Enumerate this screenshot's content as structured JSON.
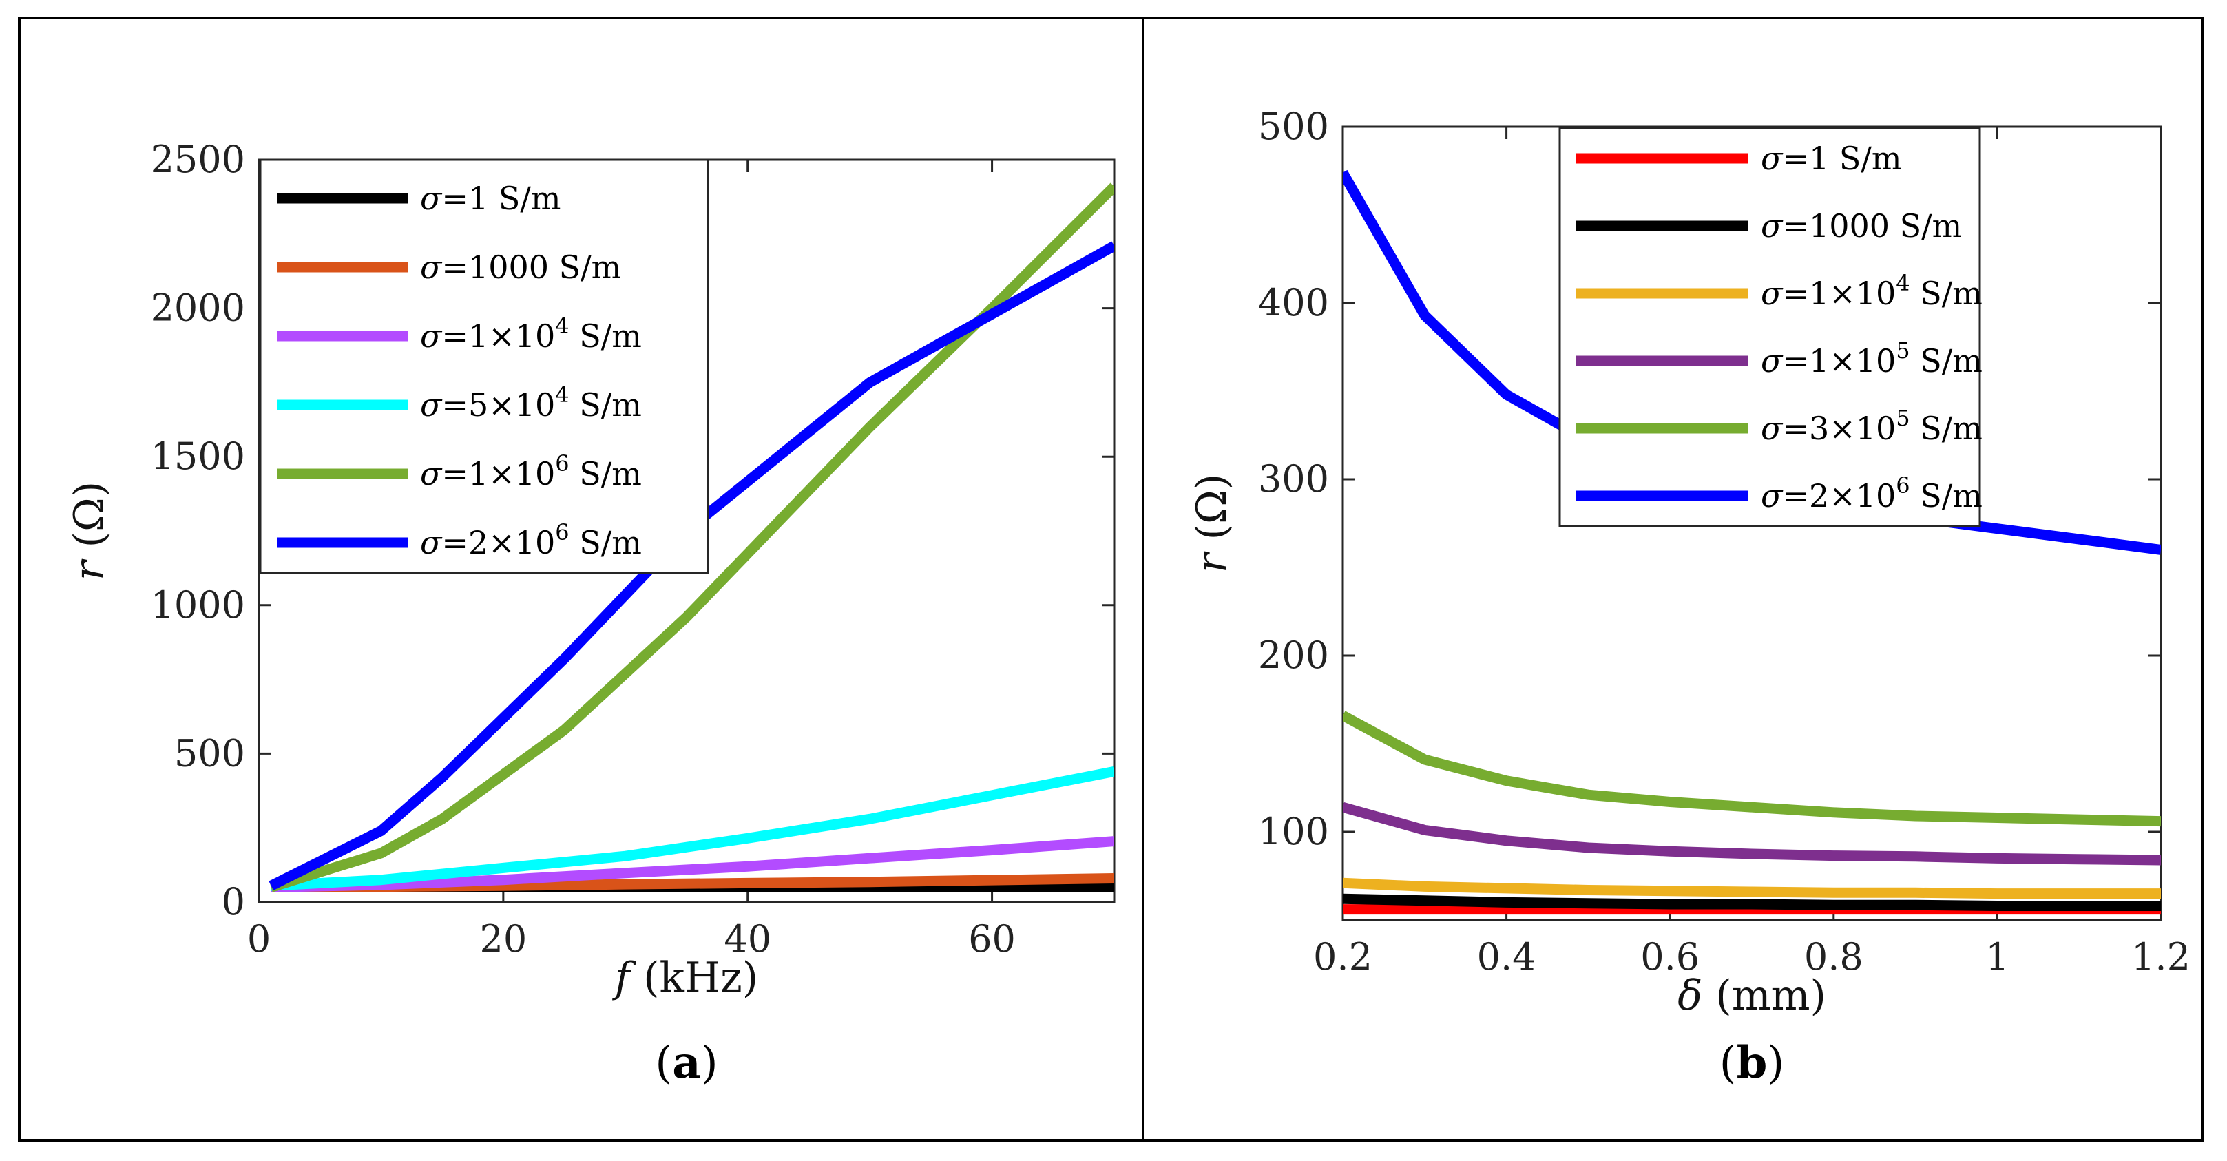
{
  "chart_data": [
    {
      "type": "line",
      "panel_label": "(a)",
      "panel_letter": "a",
      "xlabel": "f",
      "xlabel_unit": "(kHz)",
      "ylabel": "r",
      "ylabel_unit": "(Ω)",
      "xlim": [
        0,
        70
      ],
      "ylim": [
        0,
        2500
      ],
      "xticks": [
        "0",
        "20",
        "40",
        "60"
      ],
      "xtick_values": [
        0,
        20,
        40,
        60
      ],
      "yticks": [
        "0",
        "500",
        "1000",
        "1500",
        "2000",
        "2500"
      ],
      "ytick_values": [
        0,
        500,
        1000,
        1500,
        2000,
        2500
      ],
      "legend_position": "top-left",
      "series": [
        {
          "name": "σ=1 S/m",
          "label_pre": "σ",
          "label_post": "=1 S/m",
          "color": "#000000",
          "x": [
            1,
            10,
            20,
            30,
            40,
            50,
            60,
            70
          ],
          "y": [
            50,
            50,
            50,
            50,
            50,
            50,
            50,
            50
          ]
        },
        {
          "name": "σ=1000 S/m",
          "label_pre": "σ",
          "label_post": "=1000 S/m",
          "color": "#D95319",
          "x": [
            1,
            10,
            20,
            30,
            40,
            50,
            60,
            70
          ],
          "y": [
            50,
            52,
            55,
            60,
            64,
            68,
            74,
            80
          ]
        },
        {
          "name": "σ=1×10^4 S/m",
          "label_pre": "σ",
          "label_post": "=1×10",
          "label_exp": "4",
          "label_tail": " S/m",
          "color": "#B34CFF",
          "x": [
            1,
            10,
            20,
            30,
            40,
            50,
            60,
            70
          ],
          "y": [
            50,
            58,
            75,
            98,
            120,
            148,
            175,
            205
          ]
        },
        {
          "name": "σ=5×10^4 S/m",
          "label_pre": "σ",
          "label_post": "=5×10",
          "label_exp": "4",
          "label_tail": " S/m",
          "color": "#00FFFF",
          "x": [
            1,
            10,
            20,
            30,
            40,
            50,
            60,
            70
          ],
          "y": [
            55,
            75,
            115,
            155,
            215,
            280,
            360,
            440
          ]
        },
        {
          "name": "σ=1×10^6 S/m",
          "label_pre": "σ",
          "label_post": "=1×10",
          "label_exp": "6",
          "label_tail": " S/m",
          "color": "#77AC30",
          "x": [
            1,
            10,
            15,
            25,
            35,
            50,
            60,
            70
          ],
          "y": [
            50,
            165,
            280,
            580,
            960,
            1600,
            2000,
            2410
          ]
        },
        {
          "name": "σ=2×10^6 S/m",
          "label_pre": "σ",
          "label_post": "=2×10",
          "label_exp": "6",
          "label_tail": " S/m",
          "color": "#0000FF",
          "x": [
            1,
            10,
            15,
            25,
            35,
            50,
            60,
            70
          ],
          "y": [
            55,
            240,
            420,
            820,
            1250,
            1750,
            1980,
            2210
          ]
        }
      ]
    },
    {
      "type": "line",
      "panel_label": "(b)",
      "panel_letter": "b",
      "xlabel": "δ",
      "xlabel_unit": "(mm)",
      "ylabel": "r",
      "ylabel_unit": "(Ω)",
      "xlim": [
        0.2,
        1.2
      ],
      "ylim": [
        50,
        500
      ],
      "xticks": [
        "0.2",
        "0.4",
        "0.6",
        "0.8",
        "1",
        "1.2"
      ],
      "xtick_values": [
        0.2,
        0.4,
        0.6,
        0.8,
        1.0,
        1.2
      ],
      "yticks": [
        "100",
        "200",
        "300",
        "400",
        "500"
      ],
      "ytick_values": [
        100,
        200,
        300,
        400,
        500
      ],
      "legend_position": "top-center",
      "series": [
        {
          "name": "σ=1 S/m",
          "label_pre": "σ",
          "label_post": "=1 S/m",
          "color": "#FF0000",
          "x": [
            0.2,
            0.3,
            0.4,
            0.5,
            0.6,
            0.7,
            0.8,
            0.9,
            1.0,
            1.1,
            1.2
          ],
          "y": [
            56,
            56,
            56,
            56,
            56,
            56,
            56,
            56,
            56,
            56,
            56
          ]
        },
        {
          "name": "σ=1000 S/m",
          "label_pre": "σ",
          "label_post": "=1000 S/m",
          "color": "#000000",
          "x": [
            0.2,
            0.3,
            0.4,
            0.5,
            0.6,
            0.7,
            0.8,
            0.9,
            1.0,
            1.1,
            1.2
          ],
          "y": [
            62,
            61,
            60,
            59.5,
            59,
            59,
            58.5,
            58.5,
            58,
            58,
            58
          ]
        },
        {
          "name": "σ=1×10^4 S/m",
          "label_pre": "σ",
          "label_post": "=1×10",
          "label_exp": "4",
          "label_tail": " S/m",
          "color": "#EDB120",
          "x": [
            0.2,
            0.3,
            0.4,
            0.5,
            0.6,
            0.7,
            0.8,
            0.9,
            1.0,
            1.1,
            1.2
          ],
          "y": [
            71,
            69,
            68,
            67,
            66.5,
            66,
            65.5,
            65.5,
            65,
            65,
            65
          ]
        },
        {
          "name": "σ=1×10^5 S/m",
          "label_pre": "σ",
          "label_post": "=1×10",
          "label_exp": "5",
          "label_tail": " S/m",
          "color": "#7E2F8E",
          "x": [
            0.2,
            0.3,
            0.4,
            0.5,
            0.6,
            0.7,
            0.8,
            0.9,
            1.0,
            1.1,
            1.2
          ],
          "y": [
            114,
            101,
            95,
            91,
            89,
            87.5,
            86.5,
            86,
            85,
            84.5,
            84
          ]
        },
        {
          "name": "σ=3×10^5 S/m",
          "label_pre": "σ",
          "label_post": "=3×10",
          "label_exp": "5",
          "label_tail": " S/m",
          "color": "#77AC30",
          "x": [
            0.2,
            0.3,
            0.4,
            0.5,
            0.6,
            0.7,
            0.8,
            0.9,
            1.0,
            1.1,
            1.2
          ],
          "y": [
            166,
            141,
            129,
            121,
            117,
            114,
            111,
            109,
            108,
            107,
            106
          ]
        },
        {
          "name": "σ=2×10^6 S/m",
          "label_pre": "σ",
          "label_post": "=2×10",
          "label_exp": "6",
          "label_tail": " S/m",
          "color": "#0000FF",
          "x": [
            0.2,
            0.3,
            0.4,
            0.5,
            0.6,
            0.7,
            0.8,
            0.9,
            1.0,
            1.1,
            1.2
          ],
          "y": [
            474,
            393,
            348,
            322,
            305,
            294,
            285,
            278,
            272,
            266,
            260
          ]
        }
      ]
    }
  ]
}
